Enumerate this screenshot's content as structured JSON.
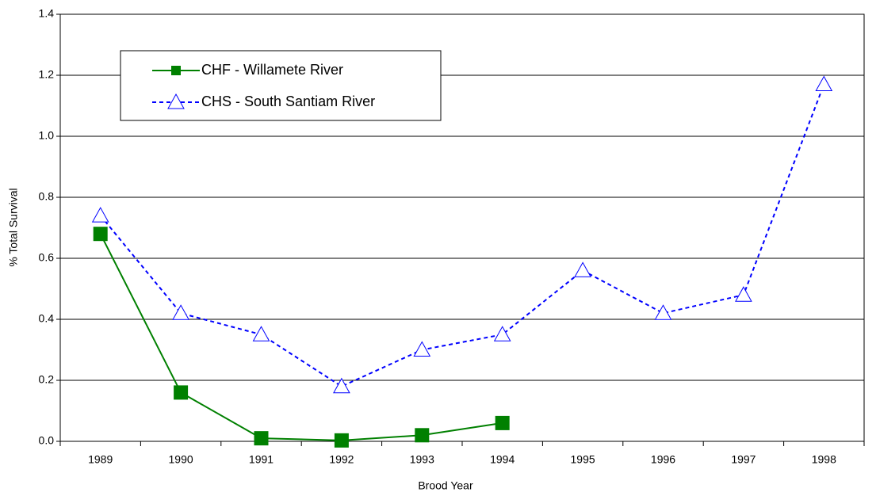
{
  "chart_data": {
    "type": "line",
    "x_label": "Brood Year",
    "y_label": "% Total Survival",
    "categories": [
      "1989",
      "1990",
      "1991",
      "1992",
      "1993",
      "1994",
      "1995",
      "1996",
      "1997",
      "1998"
    ],
    "series": [
      {
        "name": "CHF -  Willamete River",
        "color": "#008000",
        "marker": "square",
        "dashed": false,
        "values": [
          0.68,
          0.16,
          0.01,
          0.003,
          0.02,
          0.06,
          null,
          null,
          null,
          null
        ]
      },
      {
        "name": "CHS -  South Santiam River",
        "color": "#0000ff",
        "marker": "triangle",
        "dashed": true,
        "values": [
          0.74,
          0.42,
          0.35,
          0.18,
          0.3,
          0.35,
          0.56,
          0.42,
          0.48,
          1.17
        ]
      }
    ],
    "ylim": [
      0,
      1.4
    ],
    "yticks": [
      {
        "value": 0,
        "label": "0.0"
      },
      0.2,
      0.4,
      0.6,
      0.8,
      {
        "value": 1,
        "label": "1.0"
      },
      1.2,
      1.4
    ],
    "grid": true,
    "legend": "upper left"
  }
}
